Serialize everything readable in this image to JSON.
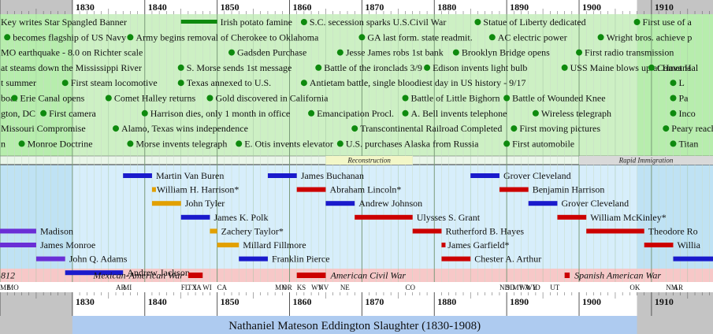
{
  "timeline": {
    "year_min": 1820,
    "year_max": 1918.5,
    "life_start": 1830,
    "life_end": 1908,
    "decade_labels": [
      "1830",
      "1840",
      "1850",
      "1860",
      "1870",
      "1880",
      "1890",
      "1900",
      "1910"
    ],
    "caption": "Nathaniel Mateson Eddington Slaughter (1830-1908)"
  },
  "colors": {
    "events_band": "#cdf0c4",
    "events_band_life": "#b5ecab",
    "presidents_band": "#bfe2f4",
    "presidents_band_life": "#d7eefb",
    "wars_band": "#f7c8c8",
    "states_band": "#ffffff",
    "caption_band": "#aecbf0",
    "grey_outside": "#c4c4c4",
    "dot": "#0e8a0e",
    "war_bar": "#cc0000",
    "democrat": "#1a1acc",
    "republican": "#cc0000",
    "whig": "#e2a000",
    "other_party": "#6a2fd6"
  },
  "events": [
    {
      "year": 1820,
      "row": 0,
      "text": "Key writes Star Spangled Banner"
    },
    {
      "year": 1838,
      "row": 1,
      "text": "Army begins removal of Cherokee to Oklahoma"
    },
    {
      "year": 1821,
      "row": 1,
      "text": "becomes flagship of US Navy"
    },
    {
      "year": 1820,
      "row": 2,
      "text": "MO earthquake - 8.0 on Richter scale"
    },
    {
      "year": 1820,
      "row": 3,
      "text": "at steams down the Mississippi River"
    },
    {
      "year": 1845,
      "row": 3,
      "text": "S. Morse sends 1st message"
    },
    {
      "year": 1820,
      "row": 4,
      "text": "t summer"
    },
    {
      "year": 1829,
      "row": 4,
      "text": "First steam locomotive"
    },
    {
      "year": 1845,
      "row": 4,
      "text": "Texas annexed to U.S."
    },
    {
      "year": 1820,
      "row": 5,
      "text": "boat"
    },
    {
      "year": 1822,
      "row": 5,
      "text": "Erie Canal opens"
    },
    {
      "year": 1835,
      "row": 5,
      "text": "Comet Halley returns"
    },
    {
      "year": 1849,
      "row": 5,
      "text": "Gold discovered in California"
    },
    {
      "year": 1820,
      "row": 6,
      "text": "gton, DC"
    },
    {
      "year": 1826,
      "row": 6,
      "text": "First camera"
    },
    {
      "year": 1840,
      "row": 6,
      "text": "Harrison dies, only 1 month in office"
    },
    {
      "year": 1820,
      "row": 7,
      "text": "Missouri Compromise"
    },
    {
      "year": 1836,
      "row": 7,
      "text": "Alamo, Texas wins independence"
    },
    {
      "year": 1820,
      "row": 8,
      "text": "n"
    },
    {
      "year": 1823,
      "row": 8,
      "text": "Monroe Doctrine"
    },
    {
      "year": 1838,
      "row": 8,
      "text": "Morse invents telegraph"
    },
    {
      "year": 1853,
      "row": 8,
      "text": "E. Otis invents elevator"
    },
    {
      "year": 1852,
      "row": 2,
      "text": "Gadsden Purchase"
    },
    {
      "year": 1862,
      "row": 0,
      "text": "S.C. secession sparks U.S.Civil War"
    },
    {
      "year": 1864,
      "row": 3,
      "text": "Battle of the ironclads 3/9"
    },
    {
      "year": 1862,
      "row": 4,
      "text": "Antietam battle, single bloodiest day in US history - 9/17"
    },
    {
      "year": 1863,
      "row": 6,
      "text": "Emancipation Procl."
    },
    {
      "year": 1867,
      "row": 8,
      "text": "U.S. purchases Alaska from Russia"
    },
    {
      "year": 1870,
      "row": 1,
      "text": "GA last form. state readmit."
    },
    {
      "year": 1867,
      "row": 2,
      "text": "Jesse James robs 1st bank"
    },
    {
      "year": 1869,
      "row": 7,
      "text": "Transcontinental Railroad Completed"
    },
    {
      "year": 1876,
      "row": 6,
      "text": "A. Bell invents telephone"
    },
    {
      "year": 1876,
      "row": 5,
      "text": "Battle of Little Bighorn"
    },
    {
      "year": 1879,
      "row": 3,
      "text": "Edison invents light bulb"
    },
    {
      "year": 1883,
      "row": 2,
      "text": "Brooklyn Bridge opens"
    },
    {
      "year": 1886,
      "row": 0,
      "text": "Statue of Liberty dedicated"
    },
    {
      "year": 1888,
      "row": 1,
      "text": "AC electric power"
    },
    {
      "year": 1890,
      "row": 5,
      "text": "Battle of Wounded Knee"
    },
    {
      "year": 1894,
      "row": 6,
      "text": "Wireless telegraph"
    },
    {
      "year": 1891,
      "row": 7,
      "text": "First moving pictures"
    },
    {
      "year": 1890,
      "row": 8,
      "text": "First automobile"
    },
    {
      "year": 1898,
      "row": 3,
      "text": "USS Maine blows up at Havana"
    },
    {
      "year": 1900,
      "row": 2,
      "text": "First radio transmission"
    },
    {
      "year": 1903,
      "row": 1,
      "text": "Wright bros. achieve p"
    },
    {
      "year": 1908,
      "row": 0,
      "text": "First use of a"
    },
    {
      "year": 1910,
      "row": 3,
      "text": "Comet Hal"
    },
    {
      "year": 1913,
      "row": 4,
      "text": "L"
    },
    {
      "year": 1913,
      "row": 5,
      "text": "Pa"
    },
    {
      "year": 1913,
      "row": 6,
      "text": "Inco"
    },
    {
      "year": 1912,
      "row": 7,
      "text": "Peary reach"
    },
    {
      "year": 1913,
      "row": 8,
      "text": "Titan"
    }
  ],
  "event_bars": [
    {
      "start": 1845,
      "end": 1850,
      "row": 0,
      "text": "Irish potato famine"
    }
  ],
  "eras": [
    {
      "start": 1865,
      "end": 1877,
      "text": "Reconstruction"
    },
    {
      "start": 1900,
      "end": 1918.5,
      "text": "Rapid Immigration"
    }
  ],
  "presidents": [
    {
      "start": 1817,
      "end": 1825,
      "row": 4,
      "party": "other",
      "text": "Madison"
    },
    {
      "start": 1817,
      "end": 1825,
      "row": 5,
      "party": "other",
      "text": "James Monroe"
    },
    {
      "start": 1825,
      "end": 1829,
      "row": 6,
      "party": "other",
      "text": "John Q. Adams"
    },
    {
      "start": 1829,
      "end": 1837,
      "row": 7,
      "party": "democrat",
      "text": "Andrew Jackson"
    },
    {
      "start": 1837,
      "end": 1841,
      "row": 0,
      "party": "democrat",
      "text": "Martin Van Buren"
    },
    {
      "start": 1841,
      "end": 1841.1,
      "row": 1,
      "party": "whig",
      "text": "William H. Harrison*"
    },
    {
      "start": 1841,
      "end": 1845,
      "row": 2,
      "party": "whig",
      "text": "John Tyler"
    },
    {
      "start": 1845,
      "end": 1849,
      "row": 3,
      "party": "democrat",
      "text": "James K. Polk"
    },
    {
      "start": 1849,
      "end": 1850,
      "row": 4,
      "party": "whig",
      "text": "Zachery Taylor*"
    },
    {
      "start": 1850,
      "end": 1853,
      "row": 5,
      "party": "whig",
      "text": "Millard Fillmore"
    },
    {
      "start": 1853,
      "end": 1857,
      "row": 6,
      "party": "democrat",
      "text": "Franklin Pierce"
    },
    {
      "start": 1857,
      "end": 1861,
      "row": 0,
      "party": "democrat",
      "text": "James Buchanan"
    },
    {
      "start": 1861,
      "end": 1865,
      "row": 1,
      "party": "republican",
      "text": "Abraham Lincoln*"
    },
    {
      "start": 1865,
      "end": 1869,
      "row": 2,
      "party": "democrat",
      "text": "Andrew Johnson"
    },
    {
      "start": 1869,
      "end": 1877,
      "row": 3,
      "party": "republican",
      "text": "Ulysses S. Grant"
    },
    {
      "start": 1877,
      "end": 1881,
      "row": 4,
      "party": "republican",
      "text": "Rutherford B. Hayes"
    },
    {
      "start": 1881,
      "end": 1881.3,
      "row": 5,
      "party": "republican",
      "text": "James Garfield*"
    },
    {
      "start": 1881,
      "end": 1885,
      "row": 6,
      "party": "republican",
      "text": "Chester A. Arthur"
    },
    {
      "start": 1885,
      "end": 1889,
      "row": 0,
      "party": "democrat",
      "text": "Grover Cleveland"
    },
    {
      "start": 1889,
      "end": 1893,
      "row": 1,
      "party": "republican",
      "text": "Benjamin Harrison"
    },
    {
      "start": 1893,
      "end": 1897,
      "row": 2,
      "party": "democrat",
      "text": "Grover Cleveland"
    },
    {
      "start": 1897,
      "end": 1901,
      "row": 3,
      "party": "republican",
      "text": "William McKinley*"
    },
    {
      "start": 1901,
      "end": 1909,
      "row": 4,
      "party": "republican",
      "text": "Theodore Ro"
    },
    {
      "start": 1909,
      "end": 1913,
      "row": 5,
      "party": "republican",
      "text": "Willia"
    },
    {
      "start": 1913,
      "end": 1921,
      "row": 6,
      "party": "democrat",
      "text": ""
    }
  ],
  "wars": [
    {
      "start": 1812,
      "end": 1815,
      "text": "812"
    },
    {
      "start": 1846,
      "end": 1848,
      "text": "Mexican-American War",
      "label_side": "left"
    },
    {
      "start": 1861,
      "end": 1865,
      "text": "American Civil War",
      "label_side": "right"
    },
    {
      "start": 1898,
      "end": 1898.7,
      "text": "Spanish American War",
      "label_side": "right"
    }
  ],
  "states": [
    {
      "year": 1820,
      "text": "ME"
    },
    {
      "year": 1821,
      "text": "MO"
    },
    {
      "year": 1836,
      "text": "AR"
    },
    {
      "year": 1837,
      "text": "MI"
    },
    {
      "year": 1845,
      "text": "FL"
    },
    {
      "year": 1845.9,
      "text": "TX"
    },
    {
      "year": 1846.8,
      "text": "IA"
    },
    {
      "year": 1848,
      "text": "WI"
    },
    {
      "year": 1850,
      "text": "CA"
    },
    {
      "year": 1858,
      "text": "MN"
    },
    {
      "year": 1859,
      "text": "OR"
    },
    {
      "year": 1861,
      "text": "KS"
    },
    {
      "year": 1863,
      "text": "WV"
    },
    {
      "year": 1864,
      "text": "NV"
    },
    {
      "year": 1867,
      "text": "NE"
    },
    {
      "year": 1876,
      "text": "CO"
    },
    {
      "year": 1889,
      "text": "ND"
    },
    {
      "year": 1889.9,
      "text": "SD"
    },
    {
      "year": 1890.8,
      "text": "MT"
    },
    {
      "year": 1891.7,
      "text": "WA"
    },
    {
      "year": 1892.6,
      "text": "WY"
    },
    {
      "year": 1893.6,
      "text": "ID"
    },
    {
      "year": 1896,
      "text": "UT"
    },
    {
      "year": 1907,
      "text": "OK"
    },
    {
      "year": 1912,
      "text": "NM"
    },
    {
      "year": 1913,
      "text": "AR"
    }
  ]
}
